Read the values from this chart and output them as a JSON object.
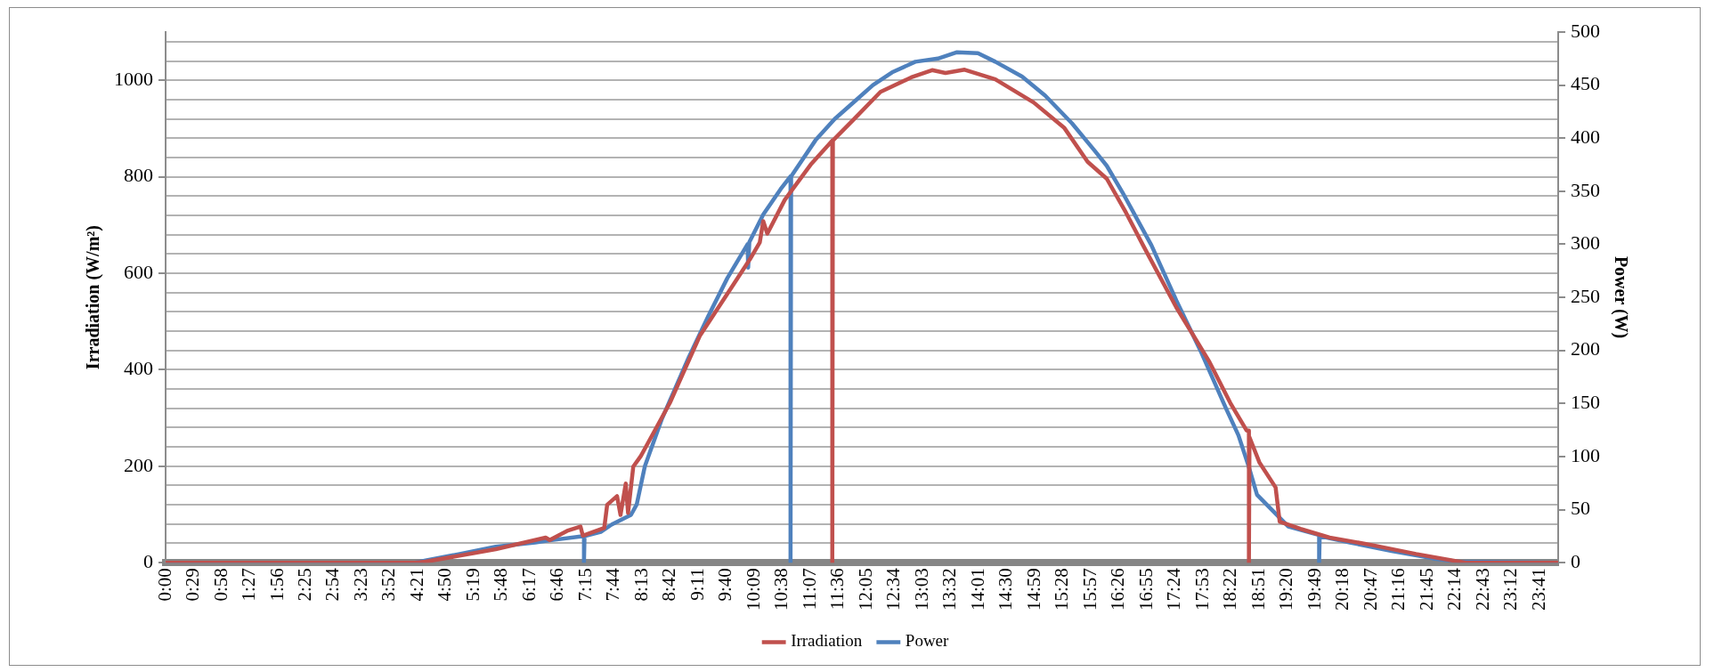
{
  "chart_data": {
    "type": "line",
    "ylabel": "Irradiation (W/m²)",
    "y2label": "Power (W)",
    "xlim": [
      0,
      24
    ],
    "xticks": [
      {
        "value": 0,
        "label": "0:00"
      },
      {
        "value": 0.4833,
        "label": "0:29"
      },
      {
        "value": 0.9667,
        "label": "0:58"
      },
      {
        "value": 1.45,
        "label": "1:27"
      },
      {
        "value": 1.9333,
        "label": "1:56"
      },
      {
        "value": 2.4167,
        "label": "2:25"
      },
      {
        "value": 2.9,
        "label": "2:54"
      },
      {
        "value": 3.3833,
        "label": "3:23"
      },
      {
        "value": 3.8667,
        "label": "3:52"
      },
      {
        "value": 4.35,
        "label": "4:21"
      },
      {
        "value": 4.8333,
        "label": "4:50"
      },
      {
        "value": 5.3167,
        "label": "5:19"
      },
      {
        "value": 5.8,
        "label": "5:48"
      },
      {
        "value": 6.2833,
        "label": "6:17"
      },
      {
        "value": 6.7667,
        "label": "6:46"
      },
      {
        "value": 7.25,
        "label": "7:15"
      },
      {
        "value": 7.7333,
        "label": "7:44"
      },
      {
        "value": 8.2167,
        "label": "8:13"
      },
      {
        "value": 8.7,
        "label": "8:42"
      },
      {
        "value": 9.1833,
        "label": "9:11"
      },
      {
        "value": 9.6667,
        "label": "9:40"
      },
      {
        "value": 10.15,
        "label": "10:09"
      },
      {
        "value": 10.6333,
        "label": "10:38"
      },
      {
        "value": 11.1167,
        "label": "11:07"
      },
      {
        "value": 11.6,
        "label": "11:36"
      },
      {
        "value": 12.0833,
        "label": "12:05"
      },
      {
        "value": 12.5667,
        "label": "12:34"
      },
      {
        "value": 13.05,
        "label": "13:03"
      },
      {
        "value": 13.5333,
        "label": "13:32"
      },
      {
        "value": 14.0167,
        "label": "14:01"
      },
      {
        "value": 14.5,
        "label": "14:30"
      },
      {
        "value": 14.9833,
        "label": "14:59"
      },
      {
        "value": 15.4667,
        "label": "15:28"
      },
      {
        "value": 15.95,
        "label": "15:57"
      },
      {
        "value": 16.4333,
        "label": "16:26"
      },
      {
        "value": 16.9167,
        "label": "16:55"
      },
      {
        "value": 17.4,
        "label": "17:24"
      },
      {
        "value": 17.8833,
        "label": "17:53"
      },
      {
        "value": 18.3667,
        "label": "18:22"
      },
      {
        "value": 18.85,
        "label": "18:51"
      },
      {
        "value": 19.3333,
        "label": "19:20"
      },
      {
        "value": 19.8167,
        "label": "19:49"
      },
      {
        "value": 20.3,
        "label": "20:18"
      },
      {
        "value": 20.7833,
        "label": "20:47"
      },
      {
        "value": 21.2667,
        "label": "21:16"
      },
      {
        "value": 21.75,
        "label": "21:45"
      },
      {
        "value": 22.2333,
        "label": "22:14"
      },
      {
        "value": 22.7167,
        "label": "22:43"
      },
      {
        "value": 23.2,
        "label": "23:12"
      },
      {
        "value": 23.6833,
        "label": "23:41"
      }
    ],
    "ylim": [
      0,
      1100
    ],
    "yticks": [
      0,
      {
        "value": 40,
        "label": null
      },
      {
        "value": 80,
        "label": null
      },
      {
        "value": 120,
        "label": null
      },
      {
        "value": 160,
        "label": null
      },
      200,
      {
        "value": 240,
        "label": null
      },
      {
        "value": 280,
        "label": null
      },
      {
        "value": 320,
        "label": null
      },
      {
        "value": 360,
        "label": null
      },
      400,
      {
        "value": 440,
        "label": null
      },
      {
        "value": 480,
        "label": null
      },
      {
        "value": 520,
        "label": null
      },
      {
        "value": 560,
        "label": null
      },
      600,
      {
        "value": 640,
        "label": null
      },
      {
        "value": 680,
        "label": null
      },
      {
        "value": 720,
        "label": null
      },
      {
        "value": 760,
        "label": null
      },
      800,
      {
        "value": 840,
        "label": null
      },
      {
        "value": 880,
        "label": null
      },
      {
        "value": 920,
        "label": null
      },
      {
        "value": 960,
        "label": null
      },
      1000,
      {
        "value": 1040,
        "label": null
      },
      {
        "value": 1080,
        "label": null
      }
    ],
    "y2lim": [
      0,
      500
    ],
    "y2ticks": [
      0,
      50,
      100,
      150,
      200,
      250,
      300,
      350,
      400,
      450,
      500
    ],
    "grid": "y",
    "legend": "bottom",
    "marker": "none",
    "line_style": "solid",
    "series": [
      {
        "name": "Irradiation",
        "color": "#c0504d",
        "x": [
          0,
          4.3,
          4.48,
          5.69,
          6.55,
          6.62,
          6.92,
          7.15,
          7.19,
          7.56,
          7.61,
          7.78,
          7.84,
          7.93,
          7.97,
          8.06,
          8.19,
          8.29,
          8.69,
          9.21,
          9.74,
          10.07,
          10.24,
          10.3,
          10.37,
          10.67,
          11.13,
          11.49,
          11.49,
          11.5,
          11.86,
          12.32,
          12.85,
          13.21,
          13.44,
          13.77,
          14.3,
          14.96,
          15.49,
          15.89,
          16.22,
          16.55,
          16.85,
          17.42,
          17.99,
          18.35,
          18.63,
          18.67,
          18.67,
          18.68,
          18.85,
          19.13,
          19.2,
          19.56,
          20.06,
          20.77,
          21.55,
          22.2,
          22.41,
          24
        ],
        "values": [
          0,
          0,
          2,
          28,
          52,
          47,
          66,
          75,
          56,
          72,
          120,
          138,
          99,
          164,
          103,
          199,
          221,
          243,
          331,
          471,
          568,
          629,
          664,
          708,
          682,
          752,
          827,
          875,
          0,
          875,
          919,
          976,
          1006,
          1021,
          1015,
          1022,
          1002,
          954,
          901,
          831,
          796,
          726,
          657,
          529,
          416,
          331,
          274,
          274,
          0,
          260,
          208,
          156,
          85,
          70,
          52,
          37,
          18,
          4,
          0,
          0
        ]
      },
      {
        "name": "Power",
        "color": "#4f81bd",
        "axis": "y2",
        "x": [
          0,
          4.3,
          4.48,
          5.05,
          5.69,
          6.37,
          6.62,
          7.21,
          7.21,
          7.22,
          7.5,
          7.69,
          8.02,
          8.12,
          8.26,
          8.55,
          9.02,
          9.35,
          9.68,
          10.03,
          10.04,
          10.06,
          10.3,
          10.6,
          10.77,
          10.77,
          10.78,
          11.2,
          11.53,
          11.86,
          12.19,
          12.52,
          12.92,
          13.31,
          13.64,
          14.0,
          14.3,
          14.76,
          15.16,
          15.62,
          16.0,
          16.22,
          16.49,
          16.99,
          17.42,
          17.85,
          18.06,
          18.27,
          18.49,
          18.67,
          18.81,
          19.35,
          19.88,
          19.88,
          19.89,
          20.41,
          21.13,
          21.84,
          22.27,
          24
        ],
        "values": [
          0,
          0,
          2,
          8,
          15,
          19,
          21,
          25,
          0,
          25,
          29,
          36,
          45,
          55,
          91,
          135,
          194,
          232,
          268,
          300,
          278,
          302,
          328,
          352,
          364,
          0,
          364,
          398,
          418,
          434,
          450,
          462,
          472,
          475,
          481,
          480,
          472,
          458,
          440,
          414,
          389,
          374,
          349,
          299,
          247,
          198,
          172,
          146,
          120,
          90,
          64,
          34,
          26,
          0,
          25,
          19,
          11,
          4,
          1,
          0
        ]
      }
    ]
  }
}
